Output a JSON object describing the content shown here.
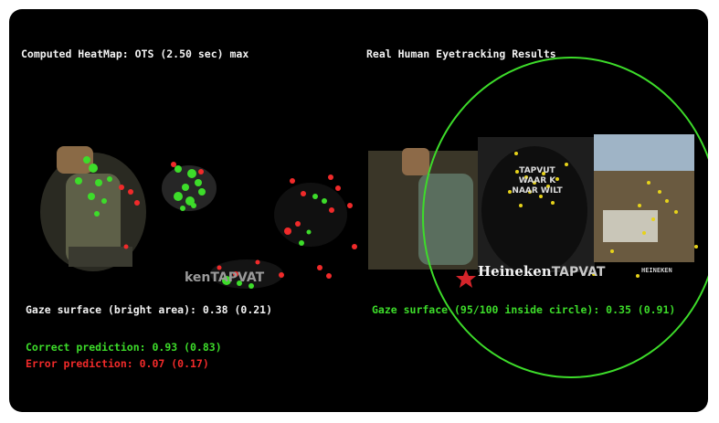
{
  "left_panel": {
    "title": "Computed HeatMap: OTS (2.50 sec) max",
    "logo_text": "kenTAPVAT",
    "gaze_surface": "Gaze surface (bright area): 0.38 (0.21)",
    "correct_prediction": "Correct prediction: 0.93 (0.83)",
    "error_prediction": "Error prediction: 0.07 (0.17)"
  },
  "right_panel": {
    "title": "Real Human Eyetracking Results",
    "logo_text": "Heineken",
    "logo_text_suffix": "TAPVAT",
    "small_logo": "HEINEKEN",
    "gaze_surface": "Gaze surface (95/100 inside circle): 0.35 (0.91)",
    "shirt_text": [
      "TAPVUT",
      "WAAR K",
      "NAAR WILT"
    ]
  },
  "colors": {
    "background": "#000000",
    "correct": "#3ddc2a",
    "error": "#f02a2a",
    "text": "#f2f2f2",
    "gaze_dot": "#e6d21a"
  }
}
